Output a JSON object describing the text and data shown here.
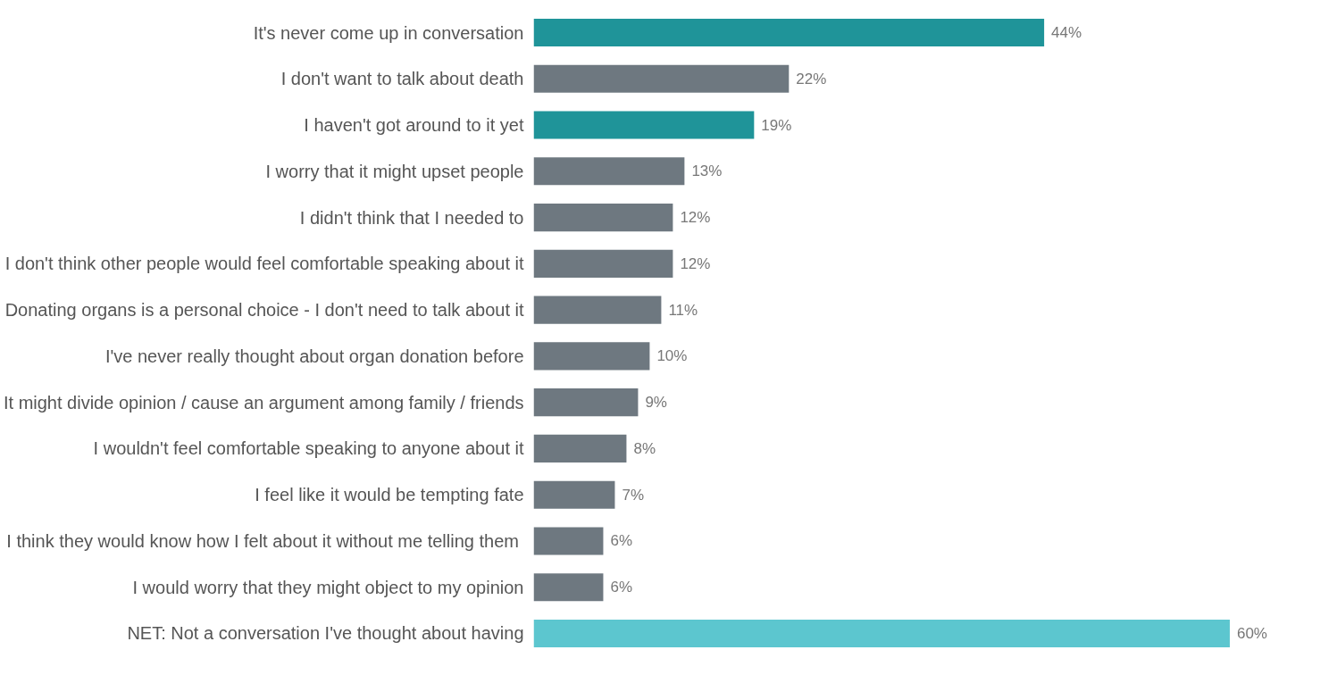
{
  "chart_data": {
    "type": "bar",
    "orientation": "horizontal",
    "categories": [
      "It's never come up in conversation",
      "I don't want to talk about death",
      "I haven't got around to it yet",
      "I worry that it might upset people",
      "I didn't think that I needed to",
      "I don't think other people would feel comfortable speaking about it",
      "Donating organs is a personal choice - I don't need to talk about it",
      "I've never really thought about organ donation before",
      "It might divide opinion / cause an argument among family / friends",
      "I wouldn't feel comfortable speaking to anyone about it",
      "I feel like it would be tempting fate",
      "I think they would know how I  felt about it without me telling them",
      "I would worry that they might object to my opinion",
      "NET: Not a conversation I've thought about having"
    ],
    "values": [
      44,
      22,
      19,
      13,
      12,
      12,
      11,
      10,
      9,
      8,
      7,
      6,
      6,
      60
    ],
    "value_labels": [
      "44%",
      "22%",
      "19%",
      "13%",
      "12%",
      "12%",
      "11%",
      "10%",
      "9%",
      "8%",
      "7%",
      "6%",
      "6%",
      "60%"
    ],
    "colors": [
      "#1f9499",
      "#6e7880",
      "#1f9499",
      "#6e7880",
      "#6e7880",
      "#6e7880",
      "#6e7880",
      "#6e7880",
      "#6e7880",
      "#6e7880",
      "#6e7880",
      "#6e7880",
      "#6e7880",
      "#5cc6cf"
    ],
    "tick_labels": "y",
    "grid": false
  }
}
